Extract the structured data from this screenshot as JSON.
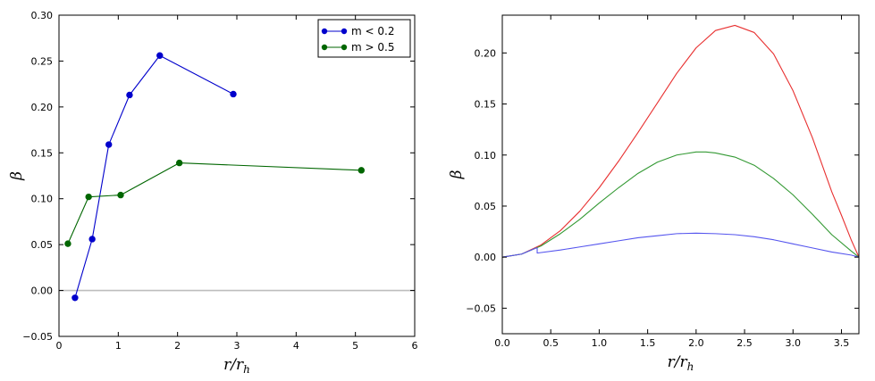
{
  "chart_data": [
    {
      "type": "line",
      "xlim": [
        0,
        6
      ],
      "ylim": [
        -0.05,
        0.3
      ],
      "xticks": [
        0,
        1,
        2,
        3,
        4,
        5,
        6
      ],
      "xtick_labels": [
        "0",
        "1",
        "2",
        "3",
        "4",
        "5",
        "6"
      ],
      "yticks": [
        -0.05,
        0.0,
        0.05,
        0.1,
        0.15,
        0.2,
        0.25,
        0.3
      ],
      "ytick_labels": [
        "−0.05",
        "0.00",
        "0.05",
        "0.10",
        "0.15",
        "0.20",
        "0.25",
        "0.30"
      ],
      "xlabel_main": "r/r",
      "xlabel_sub": "h",
      "ylabel": "β",
      "reference_line_y": 0.0,
      "legend": "top-right",
      "series": [
        {
          "name": "m < 0.2",
          "color": "#0000cc",
          "markers": true,
          "x": [
            0.27,
            0.56,
            0.84,
            1.19,
            1.7,
            2.94
          ],
          "y": [
            -0.008,
            0.056,
            0.159,
            0.213,
            0.256,
            0.214
          ]
        },
        {
          "name": "m > 0.5",
          "color": "#006600",
          "markers": true,
          "x": [
            0.15,
            0.5,
            1.04,
            2.03,
            5.1
          ],
          "y": [
            0.051,
            0.102,
            0.104,
            0.139,
            0.131
          ]
        }
      ]
    },
    {
      "type": "line",
      "xlim": [
        0,
        3.68
      ],
      "ylim": [
        -0.075,
        0.237
      ],
      "xticks": [
        0.0,
        0.5,
        1.0,
        1.5,
        2.0,
        2.5,
        3.0,
        3.5
      ],
      "xtick_labels": [
        "0.0",
        "0.5",
        "1.0",
        "1.5",
        "2.0",
        "2.5",
        "3.0",
        "3.5"
      ],
      "yticks": [
        -0.05,
        0.0,
        0.05,
        0.1,
        0.15,
        0.2
      ],
      "ytick_labels": [
        "−0.05",
        "0.00",
        "0.05",
        "0.10",
        "0.15",
        "0.20"
      ],
      "xlabel_main": "r/r",
      "xlabel_sub": "h",
      "ylabel": "β",
      "legend": "none",
      "series": [
        {
          "color": "#e83030",
          "markers": false,
          "x": [
            0,
            0.2,
            0.4,
            0.6,
            0.8,
            1.0,
            1.2,
            1.4,
            1.6,
            1.8,
            2.0,
            2.2,
            2.4,
            2.6,
            2.8,
            3.0,
            3.2,
            3.4,
            3.5,
            3.6,
            3.68
          ],
          "y": [
            0,
            0.003,
            0.012,
            0.026,
            0.045,
            0.068,
            0.094,
            0.122,
            0.151,
            0.18,
            0.205,
            0.222,
            0.227,
            0.22,
            0.199,
            0.163,
            0.117,
            0.064,
            0.041,
            0.017,
            0.0
          ]
        },
        {
          "color": "#339933",
          "markers": false,
          "x": [
            0,
            0.2,
            0.4,
            0.6,
            0.8,
            1.0,
            1.2,
            1.4,
            1.6,
            1.8,
            2.0,
            2.1,
            2.2,
            2.4,
            2.6,
            2.8,
            3.0,
            3.2,
            3.4,
            3.6,
            3.68
          ],
          "y": [
            0,
            0.003,
            0.011,
            0.023,
            0.037,
            0.053,
            0.068,
            0.082,
            0.093,
            0.1,
            0.103,
            0.103,
            0.102,
            0.098,
            0.09,
            0.077,
            0.061,
            0.042,
            0.022,
            0.006,
            0.0
          ]
        },
        {
          "color": "#5555ee",
          "markers": false,
          "x": [
            0,
            0.2,
            0.35,
            0.36,
            0.36,
            0.6,
            0.8,
            1.0,
            1.2,
            1.4,
            1.6,
            1.8,
            2.0,
            2.2,
            2.4,
            2.6,
            2.8,
            3.0,
            3.2,
            3.4,
            3.6,
            3.68
          ],
          "y": [
            0,
            0.003,
            0.009,
            0.009,
            0.004,
            0.007,
            0.01,
            0.013,
            0.016,
            0.019,
            0.021,
            0.023,
            0.0235,
            0.023,
            0.022,
            0.02,
            0.017,
            0.013,
            0.009,
            0.005,
            0.002,
            0.0
          ]
        }
      ]
    }
  ]
}
